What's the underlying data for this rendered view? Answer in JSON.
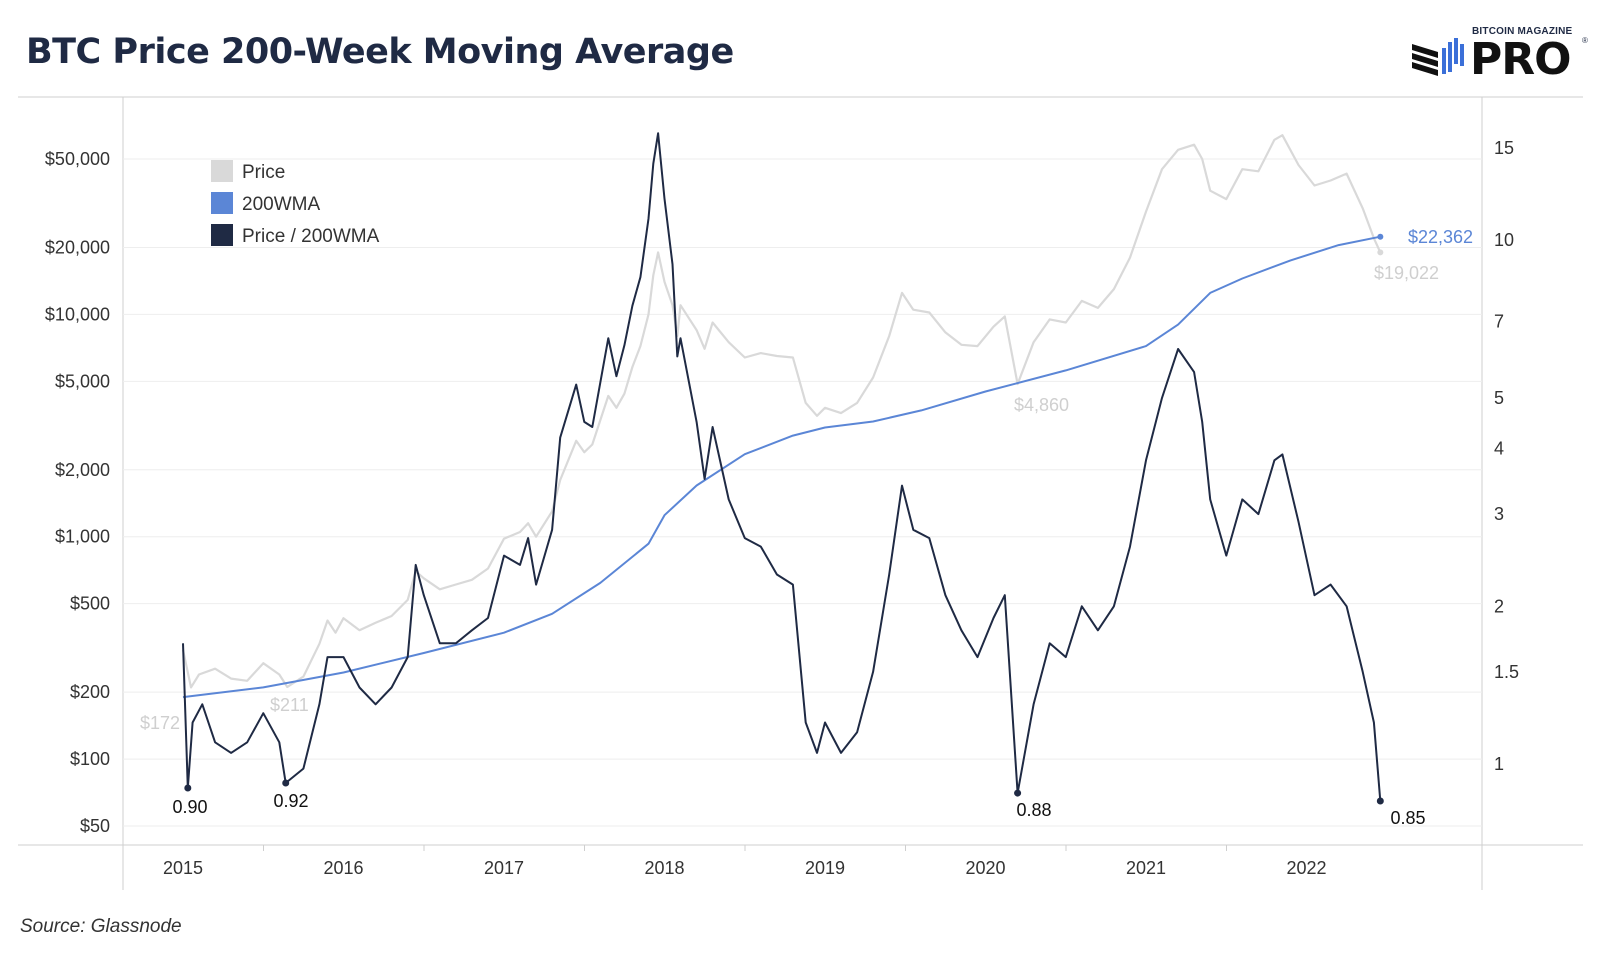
{
  "header": {
    "title": "BTC Price 200-Week Moving Average"
  },
  "logo": {
    "small_text": "BITCOIN MAGAZINE",
    "big_text": "PRO",
    "reg": "®"
  },
  "source": "Source: Glassnode",
  "colors": {
    "price": "#d9d9d9",
    "wma": "#5b86d6",
    "ratio": "#1f2a44",
    "grid": "#eeeeee"
  },
  "chart_data": {
    "type": "line",
    "title": "BTC Price 200-Week Moving Average",
    "x_ticks": [
      "2015",
      "2016",
      "2017",
      "2018",
      "2019",
      "2020",
      "2021",
      "2022"
    ],
    "y_left_scale": "log",
    "y_left_ticks": [
      "$50,000",
      "$20,000",
      "$10,000",
      "$5,000",
      "$2,000",
      "$1,000",
      "$500",
      "$200",
      "$100",
      "$50"
    ],
    "y_left_tick_values": [
      50000,
      20000,
      10000,
      5000,
      2000,
      1000,
      500,
      200,
      100,
      50
    ],
    "y_right_scale": "log",
    "y_right_ticks": [
      "15",
      "10",
      "7",
      "5",
      "4",
      "3",
      "2",
      "1.5",
      "1"
    ],
    "y_right_tick_values": [
      15,
      10,
      7,
      5,
      4,
      3,
      2,
      1.5,
      1
    ],
    "legend": {
      "position": "top-left",
      "entries": [
        "Price",
        "200WMA",
        "Price / 200WMA"
      ]
    },
    "series": [
      {
        "name": "Price",
        "axis": "left",
        "points": [
          [
            2015.0,
            310
          ],
          [
            2015.05,
            210
          ],
          [
            2015.1,
            240
          ],
          [
            2015.2,
            255
          ],
          [
            2015.3,
            230
          ],
          [
            2015.4,
            225
          ],
          [
            2015.5,
            270
          ],
          [
            2015.6,
            240
          ],
          [
            2015.65,
            211
          ],
          [
            2015.75,
            235
          ],
          [
            2015.85,
            330
          ],
          [
            2015.9,
            420
          ],
          [
            2015.95,
            370
          ],
          [
            2016.0,
            430
          ],
          [
            2016.1,
            380
          ],
          [
            2016.2,
            410
          ],
          [
            2016.3,
            440
          ],
          [
            2016.4,
            520
          ],
          [
            2016.45,
            700
          ],
          [
            2016.5,
            650
          ],
          [
            2016.6,
            580
          ],
          [
            2016.7,
            610
          ],
          [
            2016.8,
            640
          ],
          [
            2016.9,
            720
          ],
          [
            2017.0,
            980
          ],
          [
            2017.1,
            1050
          ],
          [
            2017.15,
            1150
          ],
          [
            2017.2,
            1000
          ],
          [
            2017.3,
            1300
          ],
          [
            2017.35,
            1800
          ],
          [
            2017.45,
            2700
          ],
          [
            2017.5,
            2400
          ],
          [
            2017.55,
            2600
          ],
          [
            2017.65,
            4300
          ],
          [
            2017.7,
            3800
          ],
          [
            2017.75,
            4400
          ],
          [
            2017.8,
            5800
          ],
          [
            2017.85,
            7200
          ],
          [
            2017.9,
            10000
          ],
          [
            2017.93,
            15000
          ],
          [
            2017.96,
            19000
          ],
          [
            2018.0,
            14000
          ],
          [
            2018.05,
            11000
          ],
          [
            2018.08,
            8000
          ],
          [
            2018.1,
            11000
          ],
          [
            2018.2,
            8500
          ],
          [
            2018.25,
            7000
          ],
          [
            2018.3,
            9200
          ],
          [
            2018.4,
            7500
          ],
          [
            2018.5,
            6400
          ],
          [
            2018.6,
            6700
          ],
          [
            2018.7,
            6500
          ],
          [
            2018.8,
            6400
          ],
          [
            2018.88,
            4000
          ],
          [
            2018.95,
            3500
          ],
          [
            2019.0,
            3800
          ],
          [
            2019.1,
            3600
          ],
          [
            2019.2,
            4000
          ],
          [
            2019.3,
            5200
          ],
          [
            2019.4,
            8000
          ],
          [
            2019.48,
            12500
          ],
          [
            2019.55,
            10500
          ],
          [
            2019.65,
            10200
          ],
          [
            2019.75,
            8300
          ],
          [
            2019.85,
            7300
          ],
          [
            2019.95,
            7200
          ],
          [
            2020.05,
            8800
          ],
          [
            2020.12,
            9800
          ],
          [
            2020.2,
            4860
          ],
          [
            2020.3,
            7500
          ],
          [
            2020.4,
            9500
          ],
          [
            2020.5,
            9200
          ],
          [
            2020.6,
            11500
          ],
          [
            2020.7,
            10700
          ],
          [
            2020.8,
            13000
          ],
          [
            2020.9,
            18000
          ],
          [
            2021.0,
            29000
          ],
          [
            2021.1,
            45000
          ],
          [
            2021.2,
            55000
          ],
          [
            2021.3,
            58000
          ],
          [
            2021.35,
            50000
          ],
          [
            2021.4,
            36000
          ],
          [
            2021.5,
            33000
          ],
          [
            2021.6,
            45000
          ],
          [
            2021.7,
            44000
          ],
          [
            2021.8,
            61000
          ],
          [
            2021.85,
            64000
          ],
          [
            2021.95,
            47000
          ],
          [
            2022.05,
            38000
          ],
          [
            2022.15,
            40000
          ],
          [
            2022.25,
            43000
          ],
          [
            2022.35,
            30000
          ],
          [
            2022.42,
            22000
          ],
          [
            2022.46,
            19022
          ]
        ]
      },
      {
        "name": "200WMA",
        "axis": "left",
        "points": [
          [
            2015.0,
            190
          ],
          [
            2015.5,
            210
          ],
          [
            2016.0,
            245
          ],
          [
            2016.5,
            300
          ],
          [
            2017.0,
            370
          ],
          [
            2017.3,
            450
          ],
          [
            2017.6,
            620
          ],
          [
            2017.9,
            930
          ],
          [
            2018.0,
            1250
          ],
          [
            2018.2,
            1700
          ],
          [
            2018.5,
            2350
          ],
          [
            2018.8,
            2850
          ],
          [
            2019.0,
            3100
          ],
          [
            2019.3,
            3300
          ],
          [
            2019.6,
            3700
          ],
          [
            2020.0,
            4500
          ],
          [
            2020.5,
            5600
          ],
          [
            2021.0,
            7200
          ],
          [
            2021.2,
            9000
          ],
          [
            2021.4,
            12500
          ],
          [
            2021.6,
            14500
          ],
          [
            2021.9,
            17500
          ],
          [
            2022.2,
            20500
          ],
          [
            2022.46,
            22362
          ]
        ]
      },
      {
        "name": "Price / 200WMA",
        "axis": "right",
        "points": [
          [
            2015.0,
            1.7
          ],
          [
            2015.03,
            0.9
          ],
          [
            2015.06,
            1.2
          ],
          [
            2015.12,
            1.3
          ],
          [
            2015.2,
            1.1
          ],
          [
            2015.3,
            1.05
          ],
          [
            2015.4,
            1.1
          ],
          [
            2015.5,
            1.25
          ],
          [
            2015.6,
            1.1
          ],
          [
            2015.64,
            0.92
          ],
          [
            2015.75,
            0.98
          ],
          [
            2015.85,
            1.3
          ],
          [
            2015.9,
            1.6
          ],
          [
            2016.0,
            1.6
          ],
          [
            2016.1,
            1.4
          ],
          [
            2016.2,
            1.3
          ],
          [
            2016.3,
            1.4
          ],
          [
            2016.4,
            1.6
          ],
          [
            2016.45,
            2.4
          ],
          [
            2016.5,
            2.1
          ],
          [
            2016.6,
            1.7
          ],
          [
            2016.7,
            1.7
          ],
          [
            2016.8,
            1.8
          ],
          [
            2016.9,
            1.9
          ],
          [
            2017.0,
            2.5
          ],
          [
            2017.1,
            2.4
          ],
          [
            2017.15,
            2.7
          ],
          [
            2017.2,
            2.2
          ],
          [
            2017.3,
            2.8
          ],
          [
            2017.35,
            4.2
          ],
          [
            2017.45,
            5.3
          ],
          [
            2017.5,
            4.5
          ],
          [
            2017.55,
            4.4
          ],
          [
            2017.65,
            6.5
          ],
          [
            2017.7,
            5.5
          ],
          [
            2017.75,
            6.3
          ],
          [
            2017.8,
            7.5
          ],
          [
            2017.85,
            8.5
          ],
          [
            2017.9,
            11
          ],
          [
            2017.93,
            14
          ],
          [
            2017.96,
            16
          ],
          [
            2018.0,
            12
          ],
          [
            2018.05,
            9
          ],
          [
            2018.08,
            6
          ],
          [
            2018.1,
            6.5
          ],
          [
            2018.2,
            4.5
          ],
          [
            2018.25,
            3.5
          ],
          [
            2018.3,
            4.4
          ],
          [
            2018.4,
            3.2
          ],
          [
            2018.5,
            2.7
          ],
          [
            2018.6,
            2.6
          ],
          [
            2018.7,
            2.3
          ],
          [
            2018.8,
            2.2
          ],
          [
            2018.88,
            1.2
          ],
          [
            2018.95,
            1.05
          ],
          [
            2019.0,
            1.2
          ],
          [
            2019.1,
            1.05
          ],
          [
            2019.2,
            1.15
          ],
          [
            2019.3,
            1.5
          ],
          [
            2019.4,
            2.3
          ],
          [
            2019.48,
            3.4
          ],
          [
            2019.55,
            2.8
          ],
          [
            2019.65,
            2.7
          ],
          [
            2019.75,
            2.1
          ],
          [
            2019.85,
            1.8
          ],
          [
            2019.95,
            1.6
          ],
          [
            2020.05,
            1.9
          ],
          [
            2020.12,
            2.1
          ],
          [
            2020.2,
            0.88
          ],
          [
            2020.3,
            1.3
          ],
          [
            2020.4,
            1.7
          ],
          [
            2020.5,
            1.6
          ],
          [
            2020.6,
            2.0
          ],
          [
            2020.7,
            1.8
          ],
          [
            2020.8,
            2.0
          ],
          [
            2020.9,
            2.6
          ],
          [
            2021.0,
            3.8
          ],
          [
            2021.1,
            5.0
          ],
          [
            2021.2,
            6.2
          ],
          [
            2021.3,
            5.6
          ],
          [
            2021.35,
            4.5
          ],
          [
            2021.4,
            3.2
          ],
          [
            2021.5,
            2.5
          ],
          [
            2021.6,
            3.2
          ],
          [
            2021.7,
            3.0
          ],
          [
            2021.8,
            3.8
          ],
          [
            2021.85,
            3.9
          ],
          [
            2021.95,
            2.9
          ],
          [
            2022.05,
            2.1
          ],
          [
            2022.15,
            2.2
          ],
          [
            2022.25,
            2.0
          ],
          [
            2022.35,
            1.5
          ],
          [
            2022.42,
            1.2
          ],
          [
            2022.46,
            0.85
          ]
        ]
      }
    ],
    "annotations": {
      "price": [
        "$172",
        "$211",
        "$4,860",
        "$19,022"
      ],
      "wma": [
        "$22,362"
      ],
      "ratio_lows": [
        "0.90",
        "0.92",
        "0.88",
        "0.85"
      ]
    }
  }
}
